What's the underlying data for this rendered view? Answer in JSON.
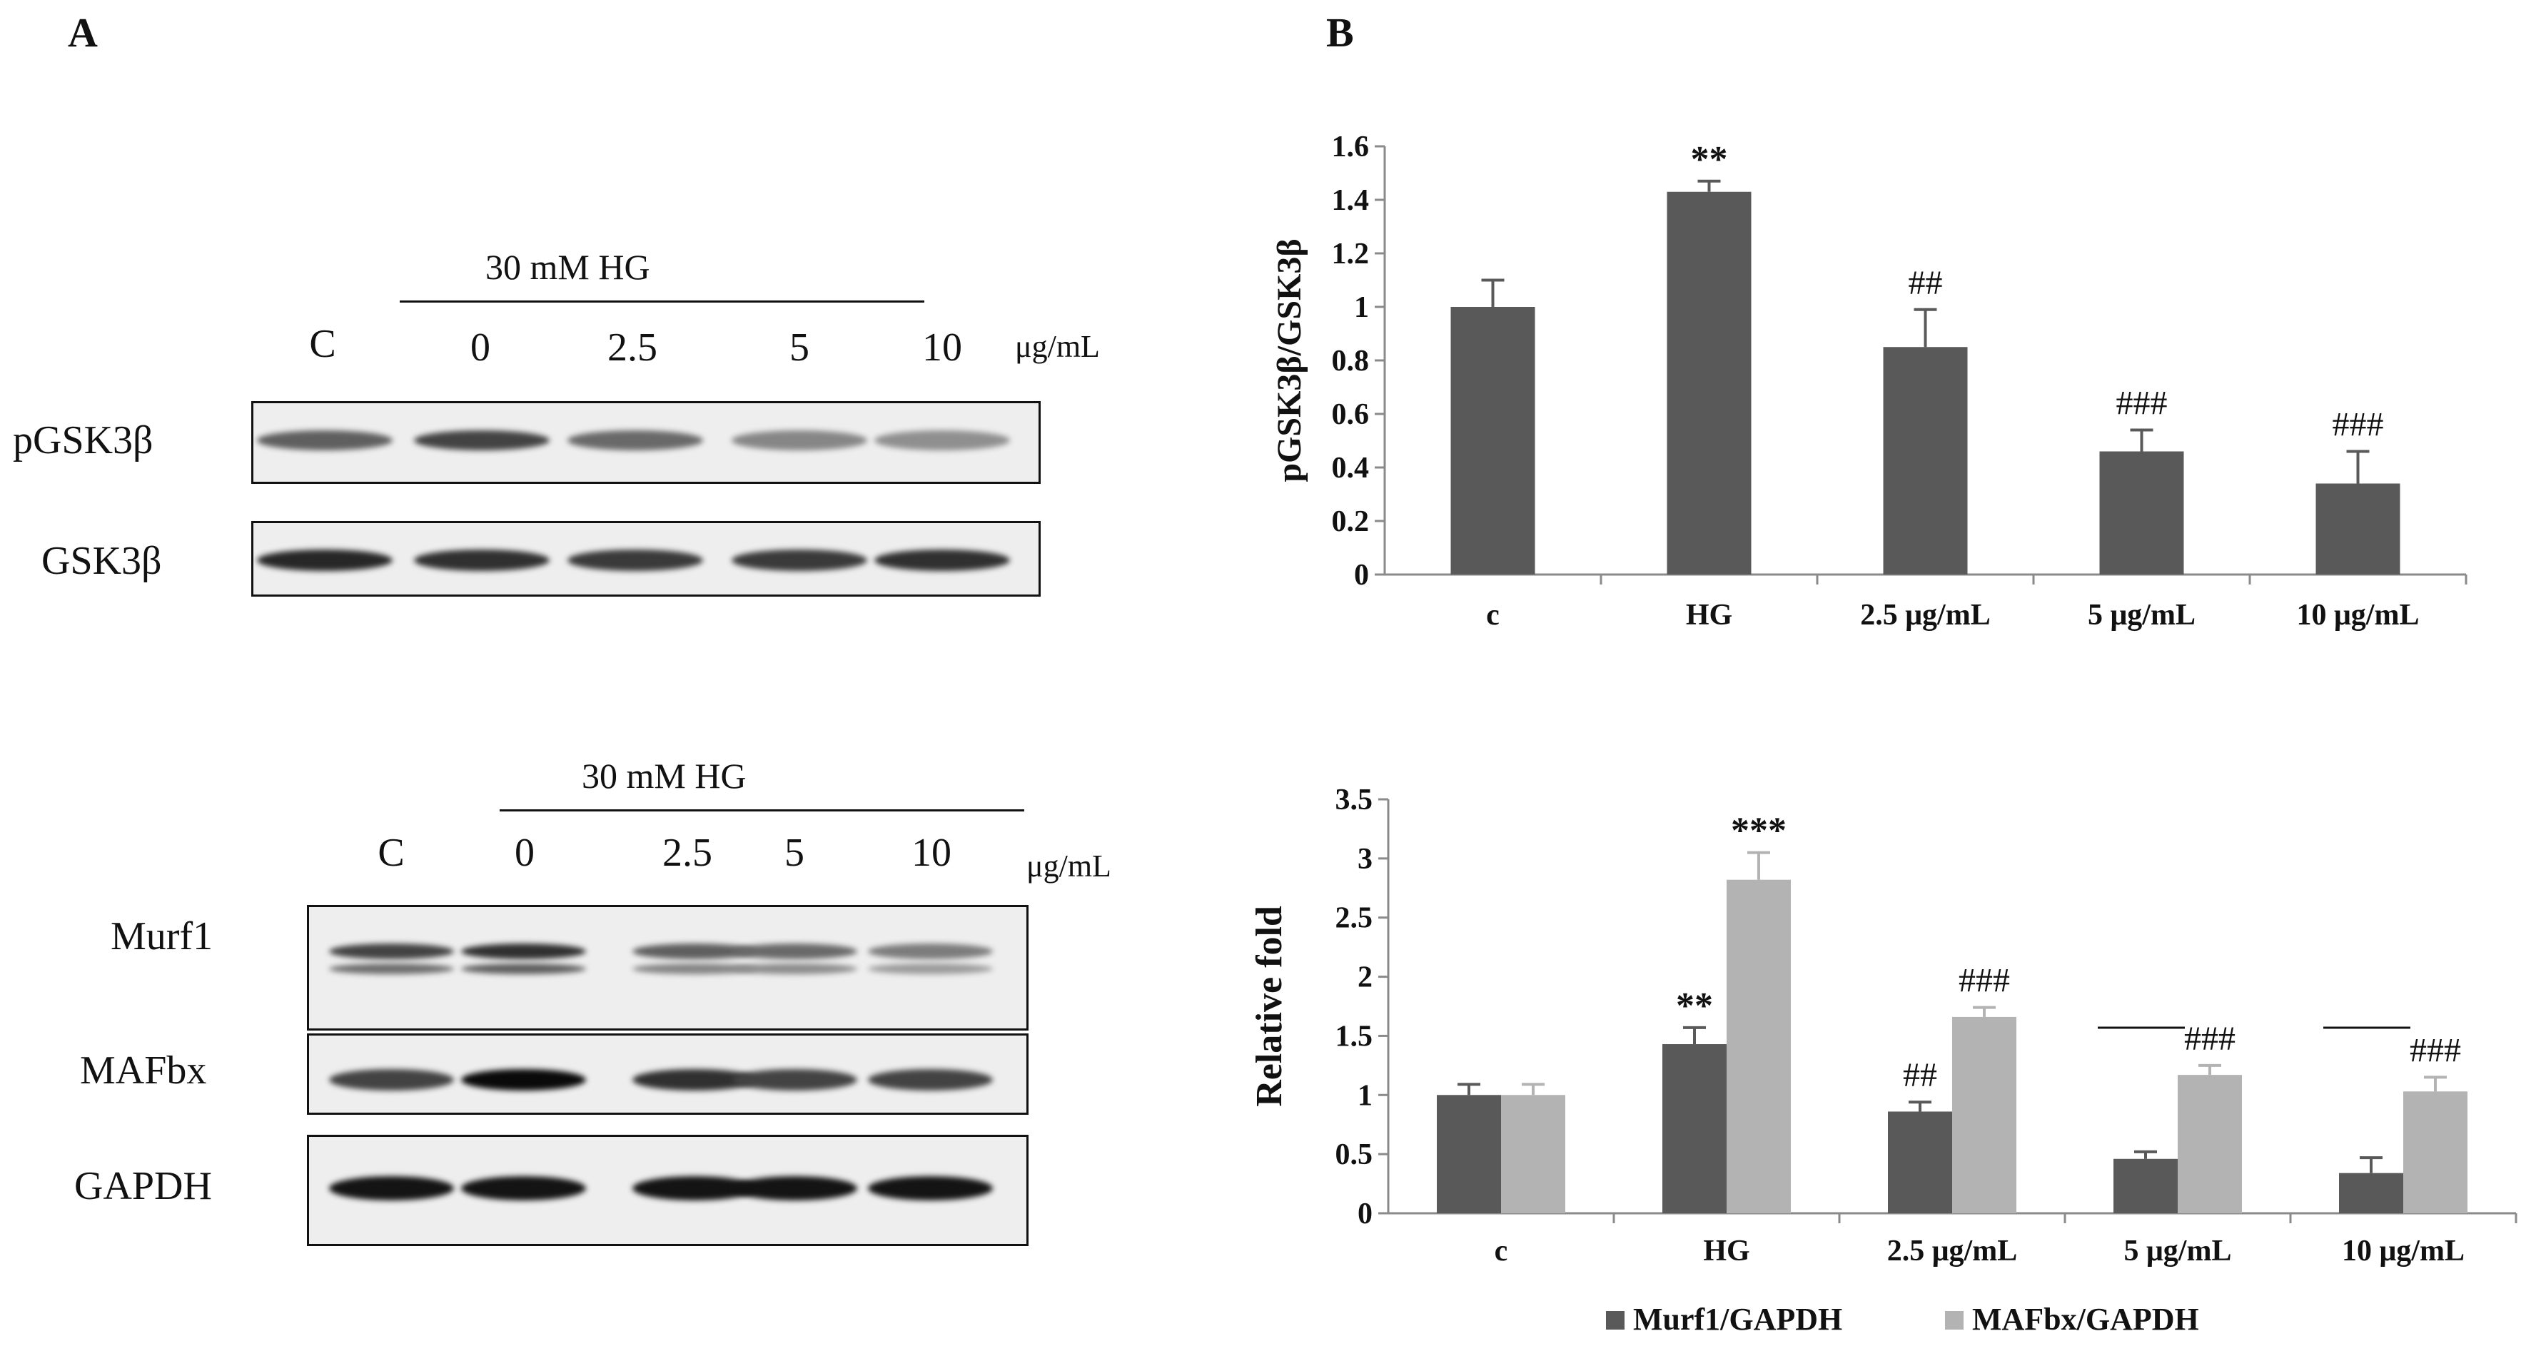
{
  "panels": {
    "a_label": "A",
    "b_label": "B"
  },
  "blot_top": {
    "treatment": "30 mM HG",
    "lanes": [
      "C",
      "0",
      "2.5",
      "5",
      "10"
    ],
    "unit": "μg/mL",
    "rows": [
      "pGSK3β",
      "GSK3β"
    ],
    "intensities": [
      [
        0.55,
        0.7,
        0.5,
        0.35,
        0.3
      ],
      [
        0.85,
        0.8,
        0.75,
        0.75,
        0.8
      ]
    ]
  },
  "blot_bottom": {
    "treatment": "30 mM HG",
    "lanes": [
      "C",
      "0",
      "2.5",
      "5",
      "10"
    ],
    "unit": "μg/mL",
    "rows": [
      "Murf1",
      "MAFbx",
      "GAPDH"
    ],
    "intensities": [
      [
        0.7,
        0.8,
        0.55,
        0.5,
        0.4
      ],
      [
        0.7,
        1.0,
        0.8,
        0.7,
        0.7
      ],
      [
        0.95,
        0.95,
        0.95,
        0.95,
        0.95
      ]
    ]
  },
  "chart_data": [
    {
      "type": "bar",
      "categories": [
        "c",
        "HG",
        "2.5 μg/mL",
        "5 μg/mL",
        "10 μg/mL"
      ],
      "series": [
        {
          "values": [
            1.0,
            1.43,
            0.85,
            0.46,
            0.34
          ],
          "errors": [
            0.1,
            0.04,
            0.14,
            0.08,
            0.12
          ],
          "annotations": [
            "",
            "**",
            "##",
            "###",
            "###"
          ],
          "color": "#595959"
        }
      ],
      "xlabel": "",
      "ylabel": "pGSK3β/GSK3β",
      "ylim": [
        0,
        1.6
      ],
      "yticks": [
        "0",
        "0.2",
        "0.4",
        "0.6",
        "0.8",
        "1",
        "1.2",
        "1.4",
        "1.6"
      ],
      "grid": false
    },
    {
      "type": "bar",
      "categories": [
        "c",
        "HG",
        "2.5 μg/mL",
        "5 μg/mL",
        "10 μg/mL"
      ],
      "series": [
        {
          "name": "Murf1/GAPDH",
          "values": [
            1.0,
            1.43,
            0.86,
            0.46,
            0.34
          ],
          "errors": [
            0.09,
            0.14,
            0.08,
            0.06,
            0.13
          ],
          "annotations": [
            "",
            "**",
            "##",
            "",
            ""
          ],
          "color": "#595959"
        },
        {
          "name": "MAFbx/GAPDH",
          "values": [
            1.0,
            2.82,
            1.66,
            1.17,
            1.03
          ],
          "errors": [
            0.09,
            0.23,
            0.08,
            0.08,
            0.12
          ],
          "annotations": [
            "",
            "***",
            "###",
            "###",
            "###"
          ],
          "color": "#b3b3b3"
        }
      ],
      "xlabel": "",
      "ylabel": "Relative fold",
      "ylim": [
        0,
        3.5
      ],
      "yticks": [
        "0",
        "0.5",
        "1",
        "1.5",
        "2",
        "2.5",
        "3",
        "3.5"
      ],
      "legend": "bottom",
      "grid": false
    }
  ]
}
